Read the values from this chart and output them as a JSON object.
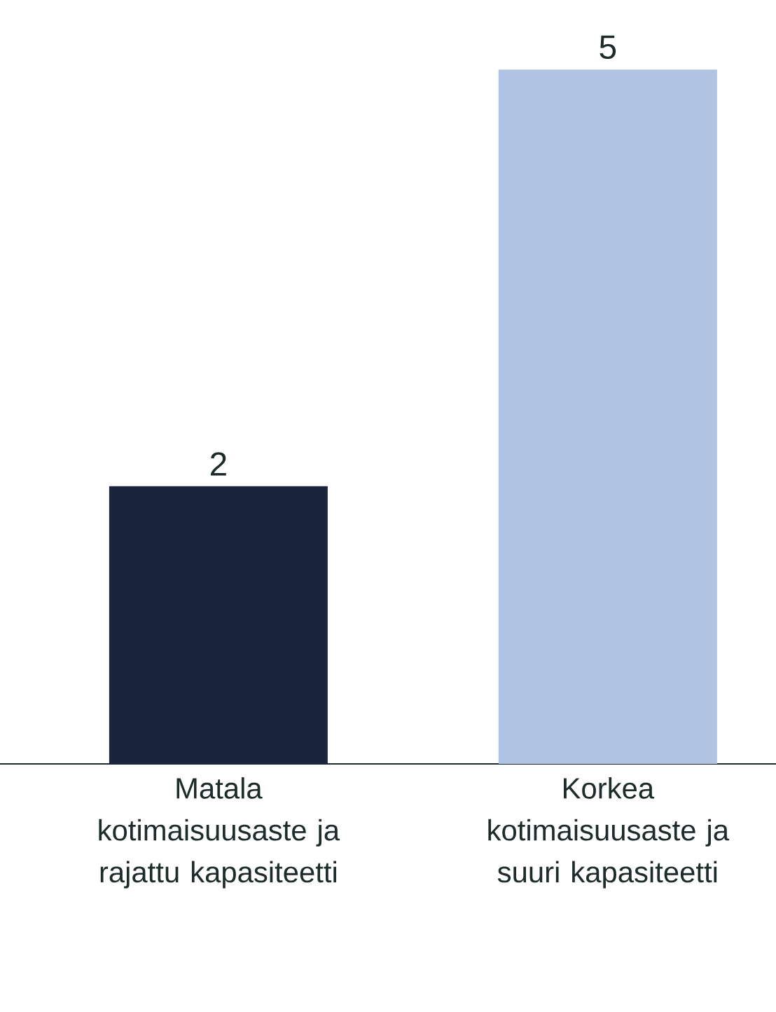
{
  "chart_data": {
    "type": "bar",
    "categories": [
      "Matala kotimaisuusaste ja rajattu kapasiteetti",
      "Korkea kotimaisuusaste ja suuri kapasiteetti"
    ],
    "values": [
      2,
      5
    ],
    "colors": [
      "#1a253d",
      "#b0c3e3"
    ],
    "data_labels": true
  }
}
